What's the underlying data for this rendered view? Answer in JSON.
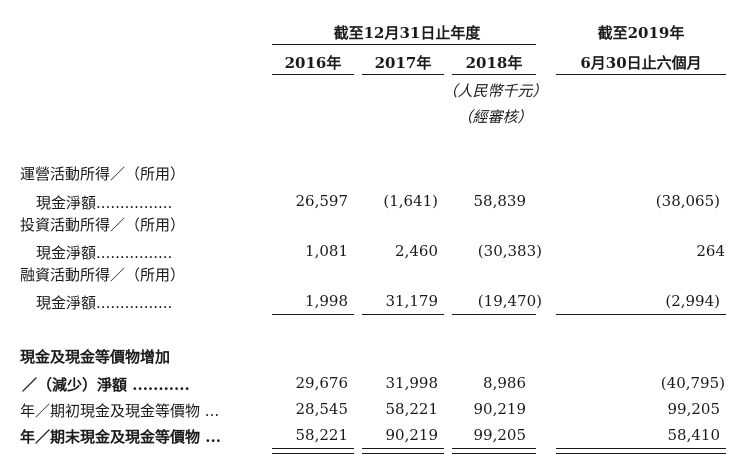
{
  "header": {
    "group_label": "截至12月31日止年度",
    "period_label_line1": "截至2019年",
    "period_label_line2": "6月30日止六個月",
    "years": [
      "2016年",
      "2017年",
      "2018年"
    ],
    "unit_line1": "（人民幣千元）",
    "unit_line2": "（經審核）"
  },
  "rows": [
    {
      "label_line1": "運營活動所得／（所用）",
      "label_line2": "現金淨額",
      "dots": "................",
      "values": [
        "26,597",
        "(1,641)",
        "58,839",
        "(38,065)"
      ]
    },
    {
      "label_line1": "投資活動所得／（所用）",
      "label_line2": "現金淨額",
      "dots": "................",
      "values": [
        "1,081",
        "2,460",
        "(30,383)",
        "264"
      ]
    },
    {
      "label_line1": "融資活動所得／（所用）",
      "label_line2": "現金淨額",
      "dots": "................",
      "values": [
        "1,998",
        "31,179",
        "(19,470)",
        "(2,994)"
      ]
    },
    {
      "label_line1": "現金及現金等價物增加",
      "label_line2": "／（減少）淨額",
      "dots": "...........",
      "values": [
        "29,676",
        "31,998",
        "8,986",
        "(40,795)"
      ]
    },
    {
      "label_line1": "年／期初現金及現金等價物",
      "dots": "...",
      "values": [
        "28,545",
        "58,221",
        "90,219",
        "99,205"
      ]
    },
    {
      "label_line1": "年／期末現金及現金等價物",
      "dots": "...",
      "values": [
        "58,221",
        "90,219",
        "99,205",
        "58,410"
      ]
    }
  ]
}
